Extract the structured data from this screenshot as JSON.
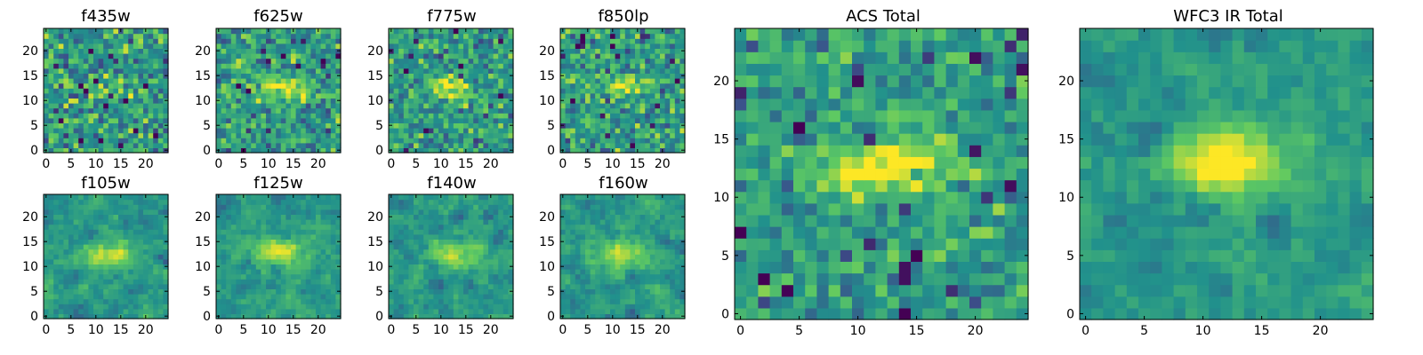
{
  "colors": {
    "colormap": "viridis",
    "stops": [
      "#440154",
      "#3b528b",
      "#21918c",
      "#5ec962",
      "#fde725"
    ],
    "background": "#ffffff",
    "axes": "#000000"
  },
  "chart_data": [
    {
      "type": "heatmap",
      "title": "f435w",
      "grid_size": [
        25,
        25
      ],
      "xlim": [
        -0.5,
        24.5
      ],
      "ylim": [
        -0.5,
        24.5
      ],
      "xticks": [
        0,
        5,
        10,
        15,
        20
      ],
      "yticks": [
        0,
        5,
        10,
        15,
        20
      ],
      "source_center": [
        12,
        12
      ],
      "source_extent": [
        4,
        2
      ],
      "source_strength": 0.1,
      "noise": 0.4,
      "smooth": 0
    },
    {
      "type": "heatmap",
      "title": "f625w",
      "grid_size": [
        25,
        25
      ],
      "xlim": [
        -0.5,
        24.5
      ],
      "ylim": [
        -0.5,
        24.5
      ],
      "xticks": [
        0,
        5,
        10,
        15,
        20
      ],
      "yticks": [
        0,
        5,
        10,
        15,
        20
      ],
      "source_center": [
        13,
        12.5
      ],
      "source_extent": [
        3,
        1.5
      ],
      "source_strength": 0.45,
      "noise": 0.35,
      "smooth": 0
    },
    {
      "type": "heatmap",
      "title": "f775w",
      "grid_size": [
        25,
        25
      ],
      "xlim": [
        -0.5,
        24.5
      ],
      "ylim": [
        -0.5,
        24.5
      ],
      "xticks": [
        0,
        5,
        10,
        15,
        20
      ],
      "yticks": [
        0,
        5,
        10,
        15,
        20
      ],
      "source_center": [
        12.5,
        12.5
      ],
      "source_extent": [
        3,
        1.5
      ],
      "source_strength": 0.45,
      "noise": 0.35,
      "smooth": 0
    },
    {
      "type": "heatmap",
      "title": "f850lp",
      "grid_size": [
        25,
        25
      ],
      "xlim": [
        -0.5,
        24.5
      ],
      "ylim": [
        -0.5,
        24.5
      ],
      "xticks": [
        0,
        5,
        10,
        15,
        20
      ],
      "yticks": [
        0,
        5,
        10,
        15,
        20
      ],
      "source_center": [
        12,
        12.5
      ],
      "source_extent": [
        3,
        1.5
      ],
      "source_strength": 0.35,
      "noise": 0.35,
      "smooth": 0
    },
    {
      "type": "heatmap",
      "title": "f105w",
      "grid_size": [
        25,
        25
      ],
      "xlim": [
        -0.5,
        24.5
      ],
      "ylim": [
        -0.5,
        24.5
      ],
      "xticks": [
        0,
        5,
        10,
        15,
        20
      ],
      "yticks": [
        0,
        5,
        10,
        15,
        20
      ],
      "source_center": [
        12.5,
        12.5
      ],
      "source_extent": [
        3.5,
        2
      ],
      "source_strength": 0.4,
      "noise": 0.28,
      "smooth": 1
    },
    {
      "type": "heatmap",
      "title": "f125w",
      "grid_size": [
        25,
        25
      ],
      "xlim": [
        -0.5,
        24.5
      ],
      "ylim": [
        -0.5,
        24.5
      ],
      "xticks": [
        0,
        5,
        10,
        15,
        20
      ],
      "yticks": [
        0,
        5,
        10,
        15,
        20
      ],
      "source_center": [
        12,
        12.5
      ],
      "source_extent": [
        3.5,
        2
      ],
      "source_strength": 0.45,
      "noise": 0.28,
      "smooth": 1
    },
    {
      "type": "heatmap",
      "title": "f140w",
      "grid_size": [
        25,
        25
      ],
      "xlim": [
        -0.5,
        24.5
      ],
      "ylim": [
        -0.5,
        24.5
      ],
      "xticks": [
        0,
        5,
        10,
        15,
        20
      ],
      "yticks": [
        0,
        5,
        10,
        15,
        20
      ],
      "source_center": [
        12.5,
        12.5
      ],
      "source_extent": [
        3.5,
        2
      ],
      "source_strength": 0.35,
      "noise": 0.28,
      "smooth": 1
    },
    {
      "type": "heatmap",
      "title": "f160w",
      "grid_size": [
        25,
        25
      ],
      "xlim": [
        -0.5,
        24.5
      ],
      "ylim": [
        -0.5,
        24.5
      ],
      "xticks": [
        0,
        5,
        10,
        15,
        20
      ],
      "yticks": [
        0,
        5,
        10,
        15,
        20
      ],
      "source_center": [
        12.5,
        12.5
      ],
      "source_extent": [
        3.5,
        2
      ],
      "source_strength": 0.4,
      "noise": 0.28,
      "smooth": 1
    },
    {
      "type": "heatmap",
      "title": "ACS Total",
      "grid_size": [
        25,
        25
      ],
      "xlim": [
        -0.5,
        24.5
      ],
      "ylim": [
        -0.5,
        24.5
      ],
      "xticks": [
        0,
        5,
        10,
        15,
        20
      ],
      "yticks": [
        0,
        5,
        10,
        15,
        20
      ],
      "source_center": [
        12.5,
        12.5
      ],
      "source_extent": [
        3.5,
        1.5
      ],
      "source_strength": 0.6,
      "noise": 0.3,
      "smooth": 0
    },
    {
      "type": "heatmap",
      "title": "WFC3 IR Total",
      "grid_size": [
        25,
        25
      ],
      "xlim": [
        -0.5,
        24.5
      ],
      "ylim": [
        -0.5,
        24.5
      ],
      "xticks": [
        0,
        5,
        10,
        15,
        20
      ],
      "yticks": [
        0,
        5,
        10,
        15,
        20
      ],
      "source_center": [
        12,
        13
      ],
      "source_extent": [
        3.5,
        2
      ],
      "source_strength": 0.55,
      "noise": 0.22,
      "smooth": 1
    }
  ]
}
